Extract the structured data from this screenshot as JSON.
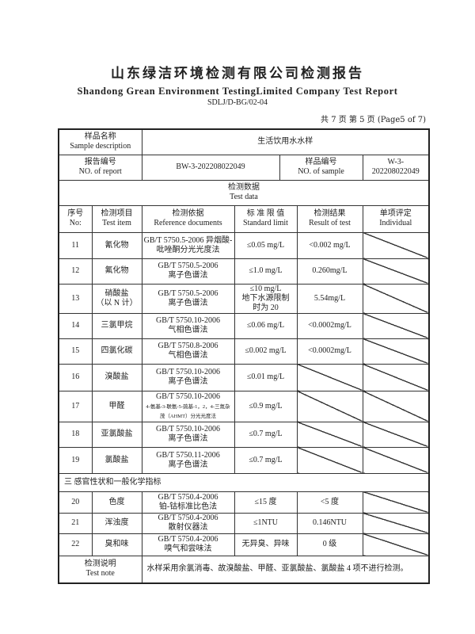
{
  "header": {
    "title": "山东绿洁环境检测有限公司检测报告",
    "subtitle": "Shandong Grean Environment TestingLimited Company Test Report",
    "code": "SDLJ/D-BG/02-04",
    "page": "共 7 页  第 5 页  (Page5 of 7)"
  },
  "info": {
    "sample_desc_label_cn": "样品名称",
    "sample_desc_label_en": "Sample description",
    "sample_desc": "生活饮用水水样",
    "report_no_label_cn": "报告编号",
    "report_no_label_en": "NO. of report",
    "report_no": "BW-3-202208022049",
    "sample_no_label_cn": "样品编号",
    "sample_no_label_en": "NO. of sample",
    "sample_no": "W-3-202208022049",
    "test_data_cn": "检测数据",
    "test_data_en": "Test data"
  },
  "columns": [
    {
      "cn": "序号",
      "en": "No:"
    },
    {
      "cn": "检测项目",
      "en": "Test item"
    },
    {
      "cn": "检测依据",
      "en": "Reference documents"
    },
    {
      "cn": "标 准 限 值",
      "en": "Standard limit"
    },
    {
      "cn": "检测结果",
      "en": "Result of test"
    },
    {
      "cn": "单项评定",
      "en": "Individual"
    }
  ],
  "rows": [
    {
      "no": "11",
      "item": "氰化物",
      "ref": "GB/T 5750.5-2006 异烟酸-吡唑酮分光光度法",
      "limit": "≤0.05 mg/L",
      "result": "<0.002 mg/L",
      "result_slashed": false
    },
    {
      "no": "12",
      "item": "氟化物",
      "ref": "GB/T 5750.5-2006\n离子色谱法",
      "limit": "≤1.0 mg/L",
      "result": "0.260mg/L",
      "result_slashed": false
    },
    {
      "no": "13",
      "item": "硝酸盐\n（以 N 计）",
      "ref": "GB/T 5750.5-2006\n离子色谱法",
      "limit": "≤10 mg/L\n地下水源限制\n时为 20",
      "result": "5.54mg/L",
      "result_slashed": false
    },
    {
      "no": "14",
      "item": "三氯甲烷",
      "ref": "GB/T 5750.10-2006\n气相色谱法",
      "limit": "≤0.06 mg/L",
      "result": "<0.0002mg/L",
      "result_slashed": false
    },
    {
      "no": "15",
      "item": "四氯化碳",
      "ref": "GB/T 5750.8-2006\n气相色谱法",
      "limit": "≤0.002 mg/L",
      "result": "<0.0002mg/L",
      "result_slashed": false
    },
    {
      "no": "16",
      "item": "溴酸盐",
      "ref": "GB/T 5750.10-2006\n离子色谱法",
      "limit": "≤0.01 mg/L",
      "result": "",
      "result_slashed": true
    },
    {
      "no": "17",
      "item": "甲醛",
      "ref": "GB/T 5750.10-2006",
      "ref_small": "4-氨基-3-联氨-5-巯基-1，2，4-三氮杂茂（AHMT）分光光度法",
      "limit": "≤0.9 mg/L",
      "result": "",
      "result_slashed": true
    },
    {
      "no": "18",
      "item": "亚氯酸盐",
      "ref": "GB/T 5750.10-2006\n离子色谱法",
      "limit": "≤0.7 mg/L",
      "result": "",
      "result_slashed": true
    },
    {
      "no": "19",
      "item": "氯酸盐",
      "ref": "GB/T 5750.11-2006\n离子色谱法",
      "limit": "≤0.7 mg/L",
      "result": "",
      "result_slashed": true
    }
  ],
  "section3": "三  感官性状和一般化学指标",
  "rows2": [
    {
      "no": "20",
      "item": "色度",
      "ref": "GB/T 5750.4-2006\n铂-钴标准比色法",
      "limit": "≤15 度",
      "result": "<5 度",
      "result_slashed": false
    },
    {
      "no": "21",
      "item": "浑浊度",
      "ref": "GB/T 5750.4-2006\n散射仪器法",
      "limit": "≤1NTU",
      "result": "0.146NTU",
      "result_slashed": false
    },
    {
      "no": "22",
      "item": "臭和味",
      "ref": "GB/T 5750.4-2006\n嗅气和尝味法",
      "limit": "无异臭、异味",
      "result": "0 级",
      "result_slashed": false
    }
  ],
  "note": {
    "label_cn": "检测说明",
    "label_en": "Test note",
    "text": "水样采用余氯消毒、故溴酸盐、甲醛、亚氯酸盐、氯酸盐 4 项不进行检测。"
  }
}
